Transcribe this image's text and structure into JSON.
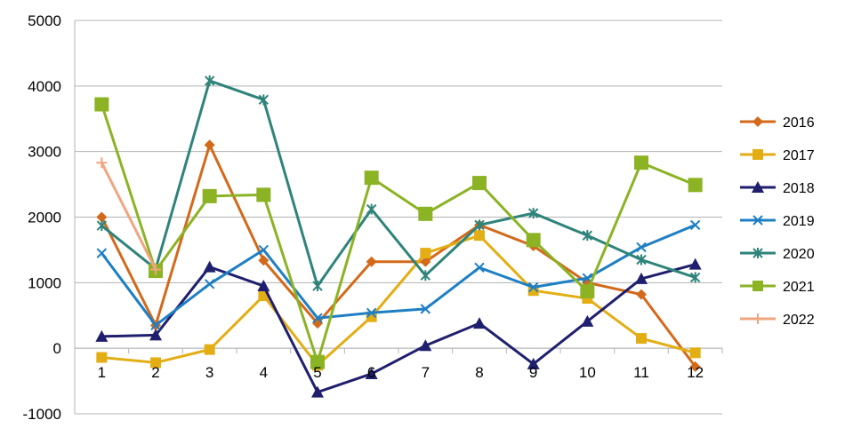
{
  "chart_data": {
    "type": "line",
    "x": [
      "1",
      "2",
      "3",
      "4",
      "5",
      "6",
      "7",
      "8",
      "9",
      "10",
      "11",
      "12"
    ],
    "ylim": [
      -1000,
      5000
    ],
    "yticks": [
      "5000",
      "4000",
      "3000",
      "2000",
      "1000",
      "0",
      "-1000"
    ],
    "ytick_values": [
      5000,
      4000,
      3000,
      2000,
      1000,
      0,
      -1000
    ],
    "grid": "horizontal",
    "legend_position": "right",
    "series": [
      {
        "name": "2016",
        "color": "#D3691A",
        "marker": "diamond",
        "values": [
          2000,
          350,
          3100,
          1340,
          380,
          1320,
          1320,
          1880,
          1560,
          1000,
          820,
          -280
        ]
      },
      {
        "name": "2017",
        "color": "#E3AE14",
        "marker": "square",
        "values": [
          -140,
          -220,
          -20,
          800,
          -260,
          480,
          1450,
          1720,
          880,
          760,
          150,
          -70
        ]
      },
      {
        "name": "2018",
        "color": "#1F1F6E",
        "marker": "triangle",
        "values": [
          180,
          200,
          1240,
          950,
          -670,
          -390,
          40,
          380,
          -240,
          410,
          1060,
          1280
        ]
      },
      {
        "name": "2019",
        "color": "#1E7FC4",
        "marker": "x",
        "values": [
          1450,
          350,
          980,
          1500,
          460,
          540,
          600,
          1230,
          930,
          1070,
          1540,
          1880
        ]
      },
      {
        "name": "2020",
        "color": "#2E847A",
        "marker": "asterisk",
        "values": [
          1870,
          1210,
          4080,
          3790,
          950,
          2120,
          1110,
          1880,
          2060,
          1720,
          1350,
          1080
        ]
      },
      {
        "name": "2021",
        "color": "#8BB324",
        "marker": "square-large",
        "values": [
          3720,
          1180,
          2320,
          2340,
          -210,
          2600,
          2050,
          2520,
          1650,
          870,
          2830,
          2490
        ]
      },
      {
        "name": "2022",
        "color": "#F0A580",
        "marker": "plus",
        "values": [
          2830,
          1200,
          null,
          null,
          null,
          null,
          null,
          null,
          null,
          null,
          null,
          null
        ]
      }
    ]
  }
}
